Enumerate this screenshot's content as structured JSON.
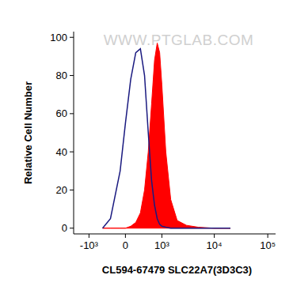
{
  "chart_data": {
    "type": "line",
    "x_label": "CL594-67479 SLC22A7(3D3C3)",
    "y_label": "Relative Cell Number",
    "annotations": [
      "WWW.PTGLAB.COM"
    ],
    "log": "x",
    "grid": false,
    "x": [
      -500,
      -300,
      -100,
      0,
      100,
      200,
      300,
      400,
      500,
      600,
      700,
      800,
      900,
      1000,
      1200,
      1500,
      2000,
      3000,
      5000,
      10000,
      20000
    ],
    "series": [
      {
        "color": "#1a1a80",
        "type": "line",
        "values": [
          0,
          5,
          30,
          55,
          78,
          92,
          94,
          80,
          50,
          25,
          12,
          5,
          2,
          1,
          0.5,
          0,
          0,
          0,
          0,
          0,
          0
        ]
      },
      {
        "color": "#ff0000",
        "type": "area",
        "values": [
          0,
          0,
          0,
          0,
          1,
          3,
          8,
          20,
          40,
          65,
          88,
          97,
          92,
          75,
          40,
          15,
          4,
          1.5,
          0.5,
          0,
          0
        ]
      }
    ],
    "xlim": [
      -2000,
      140000
    ],
    "xticks": [
      {
        "value": -1000,
        "label": "-10³"
      },
      0,
      {
        "value": 1000,
        "label": "10³"
      },
      {
        "value": 10000,
        "label": "10⁴"
      },
      {
        "value": 100000,
        "label": "10⁵"
      }
    ],
    "ylim": [
      -3,
      103
    ],
    "yticks": [
      0,
      20,
      40,
      60,
      80,
      100
    ]
  }
}
